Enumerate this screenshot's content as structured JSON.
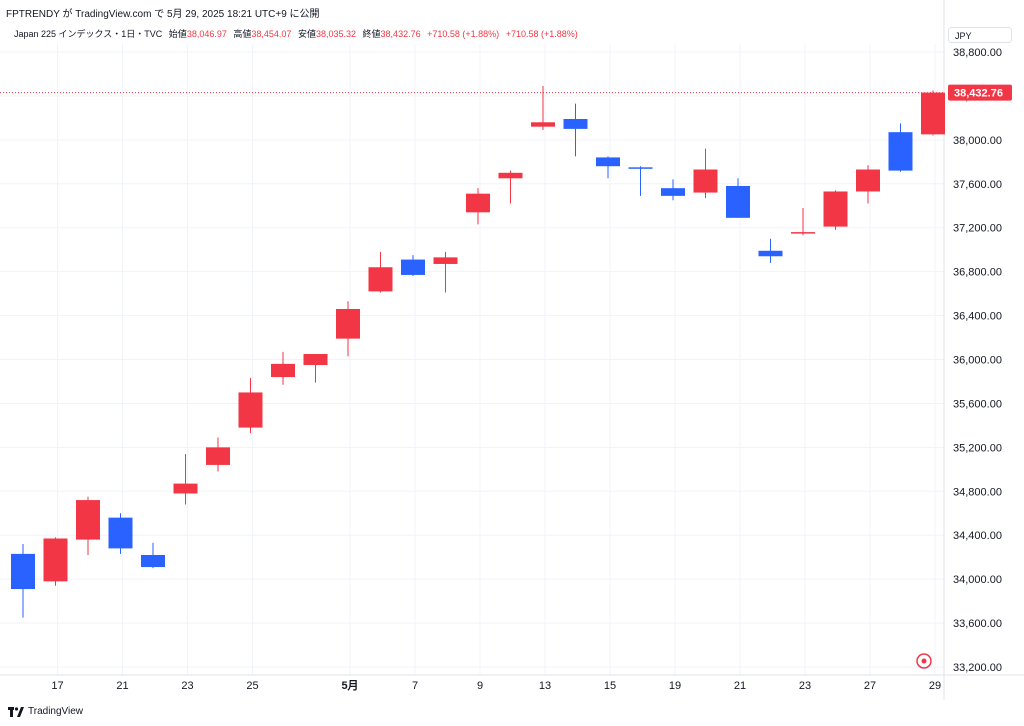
{
  "header": {
    "publisher": "FPTRENDY が TradingView.com で 5月 29, 2025 18:21 UTC+9 に公開",
    "symbol": "Japan 225 インデックス・1日・TVC",
    "open_label": "始値",
    "open_value": "38,046.97",
    "high_label": "高値",
    "high_value": "38,454.07",
    "low_label": "安値",
    "low_value": "38,035.32",
    "close_label": "終値",
    "close_value": "38,432.76",
    "change1": "+710.58 (+1.88%)",
    "change2": "+710.58 (+1.88%)",
    "currency": "JPY"
  },
  "footer": {
    "brand": "TradingView"
  },
  "chart_data": {
    "type": "candlestick",
    "price_label": "38,432.76",
    "ylim": [
      33100,
      38900
    ],
    "y_ticks": [
      33200,
      33600,
      34000,
      34400,
      34800,
      35200,
      35600,
      36000,
      36400,
      36800,
      37200,
      37600,
      38000,
      38400,
      38800
    ],
    "y_tick_labels": [
      "33,200.00",
      "33,600.00",
      "34,000.00",
      "34,400.00",
      "34,800.00",
      "35,200.00",
      "35,600.00",
      "36,000.00",
      "36,400.00",
      "36,800.00",
      "37,200.00",
      "37,600.00",
      "38,000.00",
      "38,400.00",
      "38,800.00"
    ],
    "x_tick_labels": [
      {
        "index": 1,
        "label": "17"
      },
      {
        "index": 3,
        "label": "21"
      },
      {
        "index": 5,
        "label": "23"
      },
      {
        "index": 7,
        "label": "25"
      },
      {
        "index": 10,
        "label": "5月"
      },
      {
        "index": 12,
        "label": "7"
      },
      {
        "index": 14,
        "label": "9"
      },
      {
        "index": 16,
        "label": "13"
      },
      {
        "index": 18,
        "label": "15"
      },
      {
        "index": 20,
        "label": "19"
      },
      {
        "index": 22,
        "label": "21"
      },
      {
        "index": 24,
        "label": "23"
      },
      {
        "index": 26,
        "label": "27"
      },
      {
        "index": 28,
        "label": "29"
      }
    ],
    "colors": {
      "up": "#f23645",
      "down": "#2962ff",
      "grid": "#f0f3fa",
      "axis_text": "#131722"
    },
    "candles": [
      {
        "o": 34230,
        "h": 34320,
        "l": 33650,
        "c": 33910
      },
      {
        "o": 33980,
        "h": 34380,
        "l": 33940,
        "c": 34370
      },
      {
        "o": 34360,
        "h": 34750,
        "l": 34220,
        "c": 34720
      },
      {
        "o": 34560,
        "h": 34600,
        "l": 34230,
        "c": 34280
      },
      {
        "o": 34220,
        "h": 34330,
        "l": 34100,
        "c": 34110
      },
      {
        "o": 34780,
        "h": 35140,
        "l": 34680,
        "c": 34870
      },
      {
        "o": 35040,
        "h": 35290,
        "l": 34980,
        "c": 35200
      },
      {
        "o": 35380,
        "h": 35830,
        "l": 35330,
        "c": 35700
      },
      {
        "o": 35840,
        "h": 36070,
        "l": 35770,
        "c": 35960
      },
      {
        "o": 35950,
        "h": 36050,
        "l": 35790,
        "c": 36050
      },
      {
        "o": 36190,
        "h": 36530,
        "l": 36030,
        "c": 36460
      },
      {
        "o": 36620,
        "h": 36980,
        "l": 36610,
        "c": 36840
      },
      {
        "o": 36910,
        "h": 36950,
        "l": 36760,
        "c": 36770
      },
      {
        "o": 36870,
        "h": 36980,
        "l": 36610,
        "c": 36930
      },
      {
        "o": 37340,
        "h": 37560,
        "l": 37230,
        "c": 37510
      },
      {
        "o": 37650,
        "h": 37720,
        "l": 37420,
        "c": 37700
      },
      {
        "o": 38120,
        "h": 38490,
        "l": 38090,
        "c": 38160
      },
      {
        "o": 38190,
        "h": 38330,
        "l": 37850,
        "c": 38100
      },
      {
        "o": 37840,
        "h": 37850,
        "l": 37650,
        "c": 37760
      },
      {
        "o": 37750,
        "h": 37760,
        "l": 37490,
        "c": 37740
      },
      {
        "o": 37560,
        "h": 37640,
        "l": 37450,
        "c": 37490
      },
      {
        "o": 37520,
        "h": 37920,
        "l": 37470,
        "c": 37730
      },
      {
        "o": 37580,
        "h": 37650,
        "l": 37290,
        "c": 37290
      },
      {
        "o": 36990,
        "h": 37100,
        "l": 36880,
        "c": 36940
      },
      {
        "o": 37150,
        "h": 37380,
        "l": 37130,
        "c": 37160
      },
      {
        "o": 37210,
        "h": 37540,
        "l": 37180,
        "c": 37530
      },
      {
        "o": 37530,
        "h": 37770,
        "l": 37420,
        "c": 37730
      },
      {
        "o": 38070,
        "h": 38150,
        "l": 37710,
        "c": 37720
      },
      {
        "o": 38050,
        "h": 38450,
        "l": 38040,
        "c": 38430
      }
    ]
  }
}
